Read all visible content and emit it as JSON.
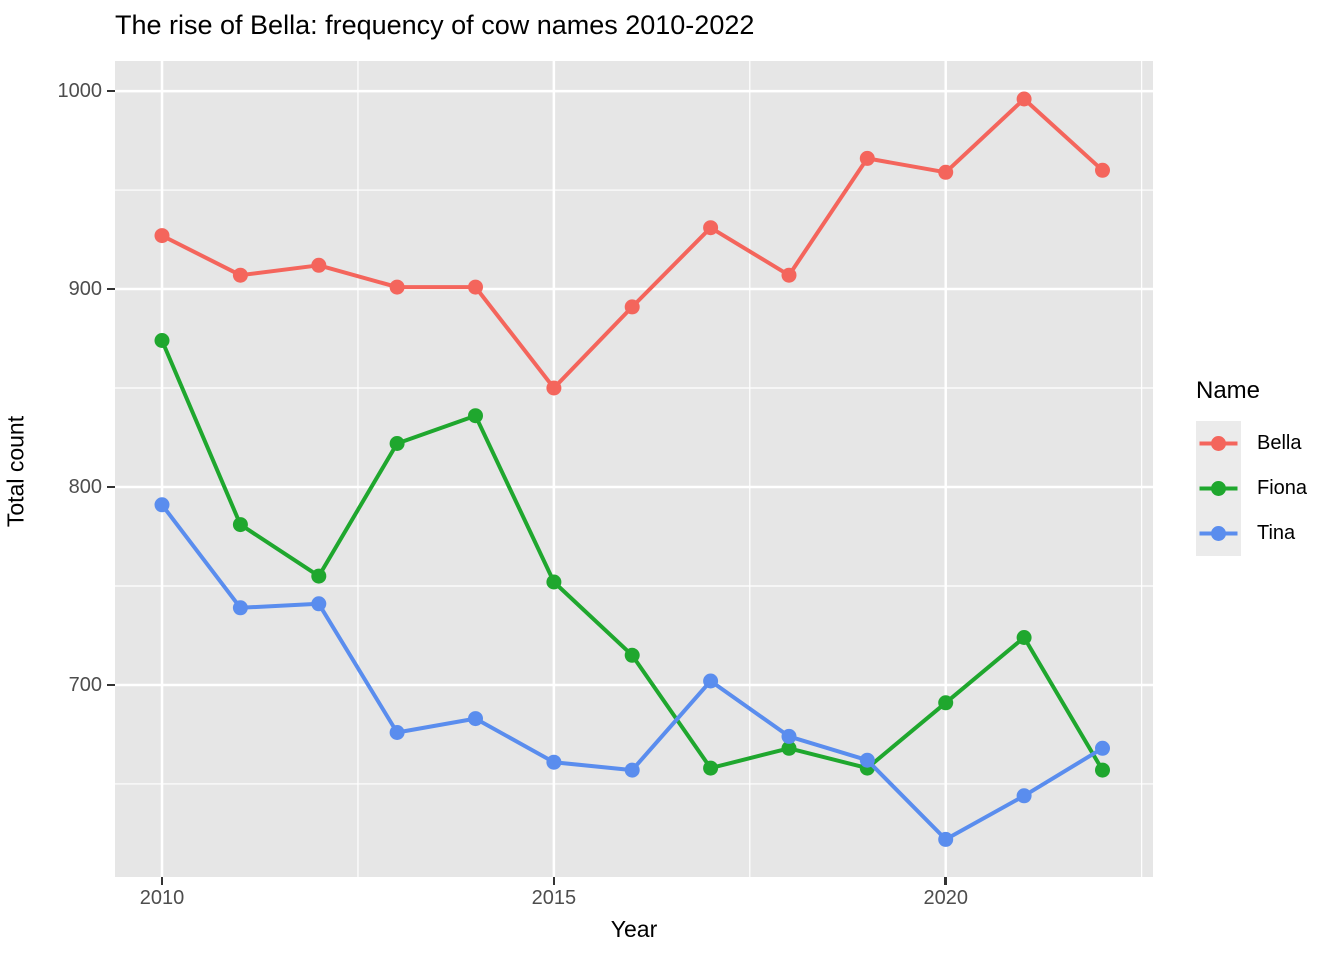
{
  "chart_data": {
    "type": "line",
    "title": "The rise of Bella: frequency of cow names 2010-2022",
    "xlabel": "Year",
    "ylabel": "Total count",
    "legend_title": "Name",
    "legend_position": "right",
    "grid": true,
    "panel_bg": "#E6E6E6",
    "grid_color": "#FFFFFF",
    "tick_color": "#333333",
    "tick_label_color": "#4D4D4D",
    "x": [
      2010,
      2011,
      2012,
      2013,
      2014,
      2015,
      2016,
      2017,
      2018,
      2019,
      2020,
      2021,
      2022
    ],
    "series": [
      {
        "name": "Bella",
        "color": "#F4655C",
        "values": [
          927,
          907,
          912,
          901,
          901,
          850,
          891,
          931,
          907,
          966,
          959,
          996,
          960
        ]
      },
      {
        "name": "Fiona",
        "color": "#1FA72E",
        "values": [
          874,
          781,
          755,
          822,
          836,
          752,
          715,
          658,
          668,
          658,
          691,
          724,
          657
        ]
      },
      {
        "name": "Tina",
        "color": "#5A8DEE",
        "values": [
          791,
          739,
          741,
          676,
          683,
          661,
          657,
          702,
          674,
          662,
          622,
          644,
          668
        ]
      }
    ],
    "x_ticks": [
      2010,
      2015,
      2020
    ],
    "x_minor_ticks": [
      2012.5,
      2017.5,
      2022.5
    ],
    "y_ticks": [
      1000,
      900,
      800,
      700
    ],
    "y_minor_ticks": [
      950,
      850,
      750,
      650
    ],
    "xlim": [
      2009.4,
      2022.645
    ],
    "ylim": [
      603,
      1015.2
    ]
  }
}
